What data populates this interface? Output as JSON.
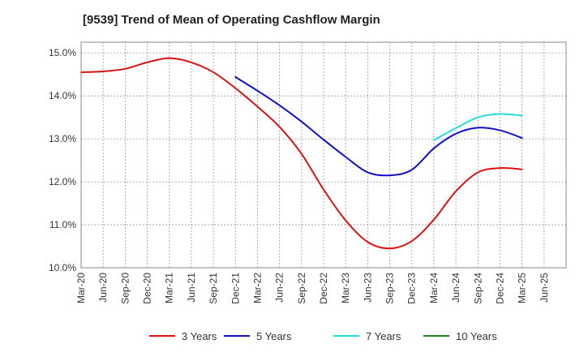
{
  "chart_data": {
    "type": "line",
    "title": "[9539]  Trend of Mean of Operating Cashflow Margin",
    "xlabel": "",
    "ylabel": "",
    "ylim": [
      10.0,
      15.25
    ],
    "yticks": [
      "10.0%",
      "11.0%",
      "12.0%",
      "13.0%",
      "14.0%",
      "15.0%"
    ],
    "ytick_values": [
      10,
      11,
      12,
      13,
      14,
      15
    ],
    "categories": [
      "Mar-20",
      "Jun-20",
      "Sep-20",
      "Dec-20",
      "Mar-21",
      "Jun-21",
      "Sep-21",
      "Dec-21",
      "Mar-22",
      "Jun-22",
      "Sep-22",
      "Dec-22",
      "Mar-23",
      "Jun-23",
      "Sep-23",
      "Dec-23",
      "Mar-24",
      "Jun-24",
      "Sep-24",
      "Dec-24",
      "Mar-25",
      "Jun-25"
    ],
    "grid": true,
    "legend_position": "bottom",
    "series": [
      {
        "name": "3 Years",
        "color": "#dd1111",
        "values": [
          14.55,
          14.57,
          14.63,
          14.78,
          14.88,
          14.78,
          14.55,
          14.18,
          13.75,
          13.28,
          12.65,
          11.82,
          11.1,
          10.6,
          10.45,
          10.62,
          11.12,
          11.78,
          12.22,
          12.32,
          12.29,
          null
        ]
      },
      {
        "name": "5 Years",
        "color": "#1111cc",
        "values": [
          null,
          null,
          null,
          null,
          null,
          null,
          null,
          14.44,
          14.12,
          13.78,
          13.4,
          12.98,
          12.58,
          12.22,
          12.15,
          12.28,
          12.78,
          13.12,
          13.26,
          13.2,
          13.02,
          null
        ]
      },
      {
        "name": "7 Years",
        "color": "#22dddd",
        "values": [
          null,
          null,
          null,
          null,
          null,
          null,
          null,
          null,
          null,
          null,
          null,
          null,
          null,
          null,
          null,
          null,
          12.97,
          13.25,
          13.5,
          13.58,
          13.54,
          null
        ]
      },
      {
        "name": "10 Years",
        "color": "#228822",
        "values": [
          null,
          null,
          null,
          null,
          null,
          null,
          null,
          null,
          null,
          null,
          null,
          null,
          null,
          null,
          null,
          null,
          null,
          null,
          null,
          null,
          null,
          null
        ]
      }
    ]
  }
}
